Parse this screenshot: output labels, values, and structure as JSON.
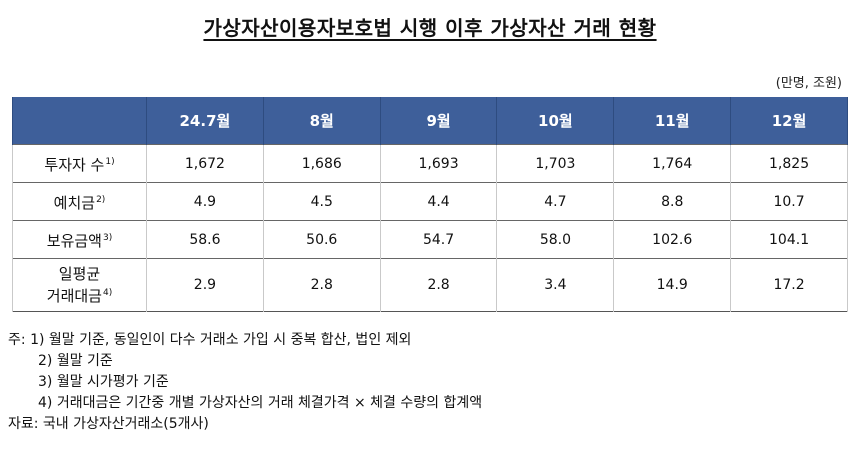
{
  "title": "가상자산이용자보호법 시행 이후 가상자산 거래 현황",
  "unit": "(만명, 조원)",
  "table": {
    "columns": [
      "24.7월",
      "8월",
      "9월",
      "10월",
      "11월",
      "12월"
    ],
    "rows": [
      {
        "label": "투자자 수",
        "note": "1)",
        "values": [
          "1,672",
          "1,686",
          "1,693",
          "1,703",
          "1,764",
          "1,825"
        ]
      },
      {
        "label": "예치금",
        "note": "2)",
        "values": [
          "4.9",
          "4.5",
          "4.4",
          "4.7",
          "8.8",
          "10.7"
        ]
      },
      {
        "label": "보유금액",
        "note": "3)",
        "values": [
          "58.6",
          "50.6",
          "54.7",
          "58.0",
          "102.6",
          "104.1"
        ]
      },
      {
        "label_line1": "일평균",
        "label_line2": "거래대금",
        "note": "4)",
        "values": [
          "2.9",
          "2.8",
          "2.8",
          "3.4",
          "14.9",
          "17.2"
        ]
      }
    ]
  },
  "notes": {
    "prefix": "주:",
    "items": [
      "1) 월말 기준, 동일인이 다수 거래소 가입 시 중복 합산, 법인 제외",
      "2) 월말 기준",
      "3) 월말 시가평가 기준",
      "4) 거래대금은 기간중 개별 가상자산의 거래 체결가격 × 체결 수량의 합계액"
    ],
    "source": "자료: 국내 가상자산거래소(5개사)"
  }
}
